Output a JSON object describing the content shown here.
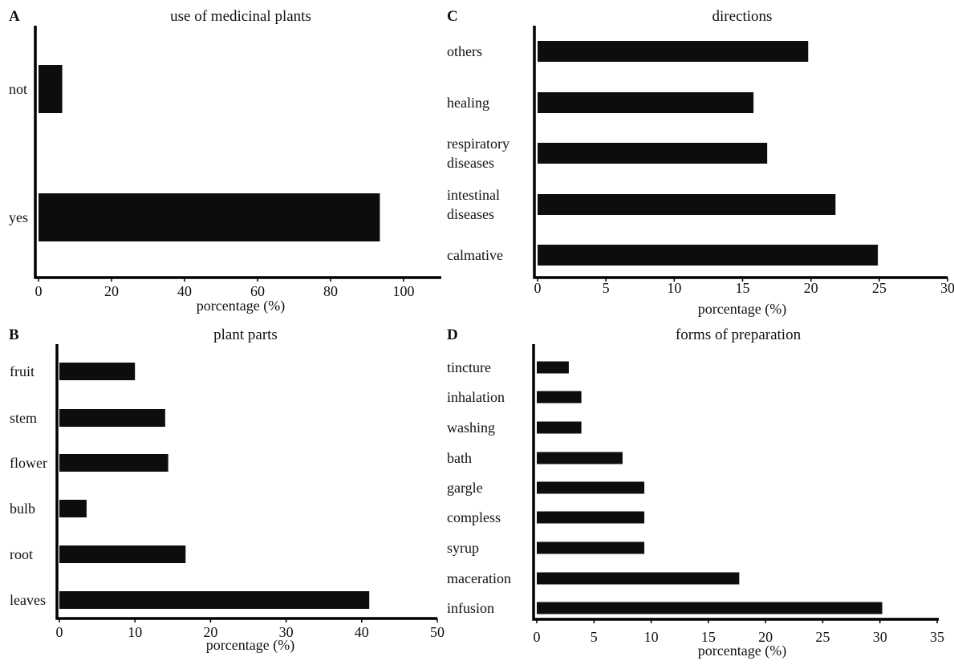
{
  "colors": {
    "bar": "#0d0d0d",
    "axis": "#000000",
    "text": "#111111"
  },
  "chart_data": [
    {
      "panel": "A",
      "type": "bar",
      "orientation": "horizontal",
      "title": "use of medicinal plants",
      "xlabel": "porcentage (%)",
      "ylabel": "",
      "xlim": [
        0,
        100
      ],
      "xticks": [
        "0",
        "20",
        "40",
        "60",
        "80",
        "100"
      ],
      "categories": [
        "not",
        "yes"
      ],
      "values": [
        6.5,
        93.5
      ],
      "grid": false,
      "legend": "none"
    },
    {
      "panel": "B",
      "type": "bar",
      "orientation": "horizontal",
      "title": "plant parts",
      "xlabel": "porcentage (%)",
      "ylabel": "",
      "xlim": [
        0,
        50
      ],
      "xticks": [
        "0",
        "10",
        "20",
        "30",
        "40",
        "50"
      ],
      "categories": [
        "fruit",
        "stem",
        "flower",
        "bulb",
        "root",
        "leaves"
      ],
      "values": [
        10,
        14,
        14.4,
        3.6,
        16.7,
        41
      ],
      "grid": false,
      "legend": "none"
    },
    {
      "panel": "C",
      "type": "bar",
      "orientation": "horizontal",
      "title": "directions",
      "xlabel": "porcentage (%)",
      "ylabel": "",
      "xlim": [
        0,
        30
      ],
      "xticks": [
        "0",
        "5",
        "10",
        "15",
        "20",
        "25",
        "30"
      ],
      "categories": [
        [
          "others"
        ],
        [
          "healing"
        ],
        [
          "respiratory",
          "diseases"
        ],
        [
          "intestinal",
          "diseases"
        ],
        [
          "calmative"
        ]
      ],
      "values": [
        19.8,
        15.8,
        16.8,
        21.8,
        24.9
      ],
      "grid": false,
      "legend": "none"
    },
    {
      "panel": "D",
      "type": "bar",
      "orientation": "horizontal",
      "title": "forms of preparation",
      "xlabel": "porcentage (%)",
      "ylabel": "",
      "xlim": [
        0,
        35
      ],
      "xticks": [
        "0",
        "5",
        "10",
        "15",
        "20",
        "25",
        "30",
        "35"
      ],
      "categories": [
        "tincture",
        "inhalation",
        "washing",
        "bath",
        "gargle",
        "compless",
        "syrup",
        "maceration",
        "infusion"
      ],
      "values": [
        2.8,
        3.9,
        3.9,
        7.5,
        9.4,
        9.4,
        9.4,
        17.7,
        30.2
      ],
      "grid": false,
      "legend": "none"
    }
  ]
}
